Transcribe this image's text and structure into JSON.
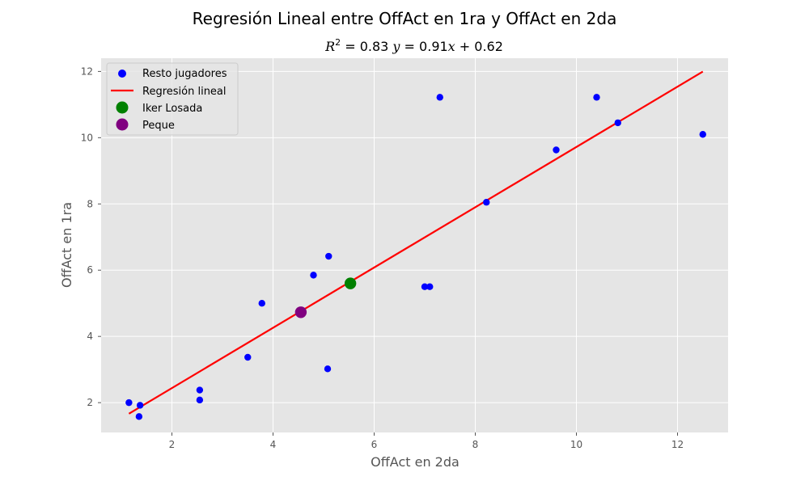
{
  "chart_data": {
    "type": "scatter",
    "title": "Regresión Lineal entre OffAct en 1ra y OffAct en 2da",
    "subtitle": {
      "r2_prefix": "R",
      "r2_exp": "2",
      "r2_value": " = 0.83 ",
      "eq_y": "y",
      "eq_mid": " = 0.91",
      "eq_x": "x",
      "eq_end": " + 0.62"
    },
    "xlabel": "OffAct en 2da",
    "ylabel": "OffAct en 1ra",
    "xlim": [
      0.6,
      13.0
    ],
    "ylim": [
      1.1,
      12.4
    ],
    "xticks": [
      2,
      4,
      6,
      8,
      10,
      12
    ],
    "yticks": [
      2,
      4,
      6,
      8,
      10,
      12
    ],
    "xtick_labels": [
      "2",
      "4",
      "6",
      "8",
      "10",
      "12"
    ],
    "ytick_labels": [
      "2",
      "4",
      "6",
      "8",
      "10",
      "12"
    ],
    "grid": true,
    "legend_position": "top-left",
    "colors": {
      "plot_bg": "#e5e5e5",
      "grid": "#ffffff",
      "rest": "#0000ff",
      "regression": "#ff0000",
      "iker": "#008000",
      "peque": "#800080"
    },
    "series": [
      {
        "name": "Resto jugadores",
        "kind": "scatter",
        "points": [
          [
            1.15,
            2.0
          ],
          [
            1.37,
            1.92
          ],
          [
            1.35,
            1.58
          ],
          [
            2.55,
            2.38
          ],
          [
            2.55,
            2.08
          ],
          [
            3.5,
            3.37
          ],
          [
            3.78,
            5.0
          ],
          [
            4.8,
            5.85
          ],
          [
            5.1,
            6.42
          ],
          [
            5.08,
            3.02
          ],
          [
            7.0,
            5.5
          ],
          [
            7.1,
            5.5
          ],
          [
            7.3,
            11.22
          ],
          [
            8.22,
            8.05
          ],
          [
            9.6,
            9.63
          ],
          [
            10.4,
            11.22
          ],
          [
            10.82,
            10.45
          ],
          [
            12.5,
            10.1
          ]
        ]
      },
      {
        "name": "Regresión lineal",
        "kind": "line",
        "slope": 0.91,
        "intercept": 0.62,
        "x_range": [
          1.15,
          12.5
        ]
      },
      {
        "name": "Iker Losada",
        "kind": "highlight",
        "points": [
          [
            5.53,
            5.6
          ]
        ]
      },
      {
        "name": "Peque",
        "kind": "highlight",
        "points": [
          [
            4.55,
            4.73
          ]
        ]
      }
    ]
  }
}
